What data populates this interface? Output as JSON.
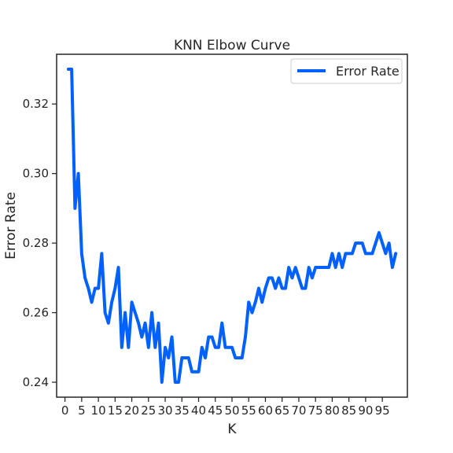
{
  "chart_data": {
    "type": "line",
    "title": "KNN Elbow Curve",
    "xlabel": "K",
    "ylabel": "Error Rate",
    "xlim": [
      -2.5,
      102.5
    ],
    "ylim": [
      0.2357,
      0.3343
    ],
    "xticks": [
      0,
      5,
      10,
      15,
      20,
      25,
      30,
      35,
      40,
      45,
      50,
      55,
      60,
      65,
      70,
      75,
      80,
      85,
      90,
      95
    ],
    "yticks": [
      0.24,
      0.26,
      0.28,
      0.3,
      0.32
    ],
    "ytick_labels": [
      "0.24",
      "0.26",
      "0.28",
      "0.30",
      "0.32"
    ],
    "grid": false,
    "legend_position": "top-right",
    "series": [
      {
        "name": "Error Rate",
        "color": "#0061ff",
        "x": [
          1,
          2,
          3,
          4,
          5,
          6,
          7,
          8,
          9,
          10,
          11,
          12,
          13,
          14,
          15,
          16,
          17,
          18,
          19,
          20,
          21,
          22,
          23,
          24,
          25,
          26,
          27,
          28,
          29,
          30,
          31,
          32,
          33,
          34,
          35,
          36,
          37,
          38,
          39,
          40,
          41,
          42,
          43,
          44,
          45,
          46,
          47,
          48,
          49,
          50,
          51,
          52,
          53,
          54,
          55,
          56,
          57,
          58,
          59,
          60,
          61,
          62,
          63,
          64,
          65,
          66,
          67,
          68,
          69,
          70,
          71,
          72,
          73,
          74,
          75,
          76,
          77,
          78,
          79,
          80,
          81,
          82,
          83,
          84,
          85,
          86,
          87,
          88,
          89,
          90,
          91,
          92,
          93,
          94,
          95,
          96,
          97,
          98,
          99
        ],
        "values": [
          0.33,
          0.33,
          0.29,
          0.3,
          0.277,
          0.27,
          0.267,
          0.263,
          0.267,
          0.267,
          0.277,
          0.26,
          0.257,
          0.263,
          0.267,
          0.273,
          0.25,
          0.26,
          0.25,
          0.263,
          0.26,
          0.257,
          0.253,
          0.257,
          0.25,
          0.26,
          0.25,
          0.257,
          0.24,
          0.25,
          0.247,
          0.253,
          0.24,
          0.24,
          0.247,
          0.247,
          0.247,
          0.243,
          0.243,
          0.243,
          0.25,
          0.247,
          0.253,
          0.253,
          0.25,
          0.25,
          0.257,
          0.25,
          0.25,
          0.25,
          0.247,
          0.247,
          0.247,
          0.253,
          0.263,
          0.26,
          0.263,
          0.267,
          0.263,
          0.267,
          0.27,
          0.27,
          0.267,
          0.27,
          0.267,
          0.267,
          0.273,
          0.27,
          0.273,
          0.27,
          0.267,
          0.267,
          0.273,
          0.27,
          0.273,
          0.273,
          0.273,
          0.273,
          0.273,
          0.277,
          0.273,
          0.277,
          0.273,
          0.277,
          0.277,
          0.277,
          0.28,
          0.28,
          0.28,
          0.277,
          0.277,
          0.277,
          0.28,
          0.283,
          0.28,
          0.277,
          0.28,
          0.273,
          0.277
        ]
      }
    ]
  }
}
